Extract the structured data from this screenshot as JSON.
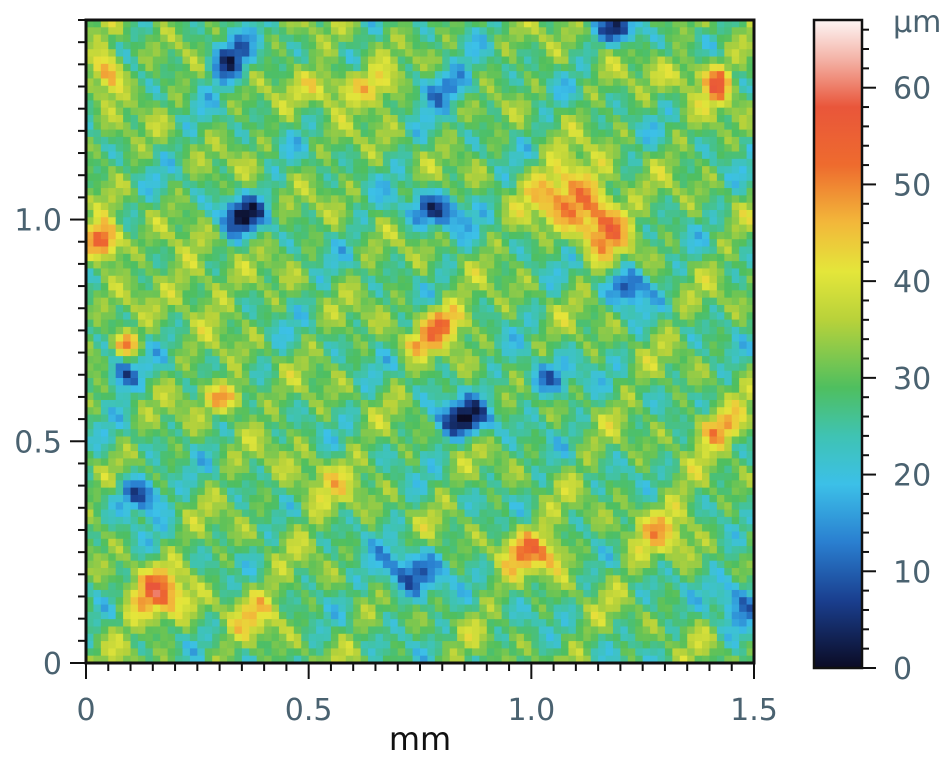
{
  "chart_data": {
    "type": "heatmap",
    "title": "",
    "xlabel": "mm",
    "ylabel": "",
    "xlim": [
      0,
      1.5
    ],
    "ylim": [
      0,
      1.45
    ],
    "x_ticks": [
      {
        "value": 0,
        "label": "0"
      },
      {
        "value": 0.5,
        "label": "0.5"
      },
      {
        "value": 1.0,
        "label": "1.0"
      },
      {
        "value": 1.5,
        "label": "1.5"
      }
    ],
    "y_ticks": [
      {
        "value": 0,
        "label": "0"
      },
      {
        "value": 0.5,
        "label": "0.5"
      },
      {
        "value": 1.0,
        "label": "1.0"
      }
    ],
    "grid": false,
    "colorbar": {
      "unit_label": "µm",
      "range": [
        0,
        67
      ],
      "ticks": [
        {
          "value": 0,
          "label": "0"
        },
        {
          "value": 10,
          "label": "10"
        },
        {
          "value": 20,
          "label": "20"
        },
        {
          "value": 30,
          "label": "30"
        },
        {
          "value": 40,
          "label": "40"
        },
        {
          "value": 50,
          "label": "50"
        },
        {
          "value": 60,
          "label": "60"
        }
      ],
      "colormap": [
        {
          "value": 0,
          "color": "#0b0b24"
        },
        {
          "value": 7,
          "color": "#1a3f8f"
        },
        {
          "value": 13,
          "color": "#2a7fd0"
        },
        {
          "value": 19,
          "color": "#3cc0e8"
        },
        {
          "value": 24,
          "color": "#3fc3b3"
        },
        {
          "value": 29,
          "color": "#4fbf5f"
        },
        {
          "value": 36,
          "color": "#b8d23a"
        },
        {
          "value": 41,
          "color": "#e4e63a"
        },
        {
          "value": 46,
          "color": "#f2b83a"
        },
        {
          "value": 52,
          "color": "#ee6b2e"
        },
        {
          "value": 58,
          "color": "#e9563a"
        },
        {
          "value": 63,
          "color": "#f4b4a8"
        },
        {
          "value": 67,
          "color": "#fdf5f4"
        }
      ]
    },
    "surface": {
      "base_height": 29,
      "features": [
        {
          "x": 0.05,
          "y": 1.33,
          "sx": 0.025,
          "sy": 0.035,
          "amp": 26
        },
        {
          "x": 0.04,
          "y": 0.95,
          "sx": 0.03,
          "sy": 0.03,
          "amp": 34
        },
        {
          "x": 0.09,
          "y": 0.72,
          "sx": 0.02,
          "sy": 0.02,
          "amp": 22
        },
        {
          "x": 0.08,
          "y": 0.65,
          "sx": 0.025,
          "sy": 0.025,
          "amp": -22
        },
        {
          "x": 0.32,
          "y": 0.6,
          "sx": 0.035,
          "sy": 0.025,
          "amp": 22
        },
        {
          "x": 0.12,
          "y": 0.38,
          "sx": 0.035,
          "sy": 0.03,
          "amp": -24
        },
        {
          "x": 0.16,
          "y": 0.15,
          "sx": 0.05,
          "sy": 0.045,
          "amp": 20
        },
        {
          "x": 0.32,
          "y": 1.36,
          "sx": 0.035,
          "sy": 0.035,
          "amp": -22
        },
        {
          "x": 0.55,
          "y": 1.3,
          "sx": 0.05,
          "sy": 0.03,
          "amp": 15
        },
        {
          "x": 0.66,
          "y": 1.3,
          "sx": 0.04,
          "sy": 0.03,
          "amp": 14
        },
        {
          "x": 0.8,
          "y": 1.3,
          "sx": 0.06,
          "sy": 0.03,
          "amp": -14
        },
        {
          "x": 1.2,
          "y": 1.43,
          "sx": 0.03,
          "sy": 0.025,
          "amp": -22
        },
        {
          "x": 1.36,
          "y": 1.33,
          "sx": 0.05,
          "sy": 0.03,
          "amp": 12
        },
        {
          "x": 1.42,
          "y": 1.3,
          "sx": 0.02,
          "sy": 0.03,
          "amp": 20
        },
        {
          "x": 1.08,
          "y": 1.06,
          "sx": 0.06,
          "sy": 0.05,
          "amp": 20
        },
        {
          "x": 1.16,
          "y": 0.99,
          "sx": 0.04,
          "sy": 0.05,
          "amp": 22
        },
        {
          "x": 1.22,
          "y": 0.85,
          "sx": 0.03,
          "sy": 0.03,
          "amp": -20
        },
        {
          "x": 0.8,
          "y": 0.77,
          "sx": 0.04,
          "sy": 0.03,
          "amp": 20
        },
        {
          "x": 0.74,
          "y": 0.72,
          "sx": 0.03,
          "sy": 0.02,
          "amp": 14
        },
        {
          "x": 0.85,
          "y": 0.55,
          "sx": 0.05,
          "sy": 0.03,
          "amp": -24
        },
        {
          "x": 1.03,
          "y": 0.64,
          "sx": 0.04,
          "sy": 0.03,
          "amp": -18
        },
        {
          "x": 1.42,
          "y": 0.53,
          "sx": 0.045,
          "sy": 0.03,
          "amp": 18
        },
        {
          "x": 0.72,
          "y": 0.2,
          "sx": 0.05,
          "sy": 0.04,
          "amp": -20
        },
        {
          "x": 0.98,
          "y": 0.26,
          "sx": 0.04,
          "sy": 0.035,
          "amp": 16
        },
        {
          "x": 1.05,
          "y": 0.24,
          "sx": 0.03,
          "sy": 0.03,
          "amp": 14
        },
        {
          "x": 0.35,
          "y": 1.01,
          "sx": 0.04,
          "sy": 0.03,
          "amp": -22
        },
        {
          "x": 0.78,
          "y": 1.02,
          "sx": 0.05,
          "sy": 0.03,
          "amp": -20
        },
        {
          "x": 1.46,
          "y": 0.15,
          "sx": 0.04,
          "sy": 0.05,
          "amp": -16
        },
        {
          "x": 0.38,
          "y": 0.12,
          "sx": 0.05,
          "sy": 0.04,
          "amp": 10
        },
        {
          "x": 0.52,
          "y": 0.4,
          "sx": 0.06,
          "sy": 0.05,
          "amp": 8
        },
        {
          "x": 0.25,
          "y": 0.85,
          "sx": 0.05,
          "sy": 0.05,
          "amp": 10
        },
        {
          "x": 1.3,
          "y": 0.3,
          "sx": 0.06,
          "sy": 0.05,
          "amp": 10
        }
      ]
    }
  }
}
